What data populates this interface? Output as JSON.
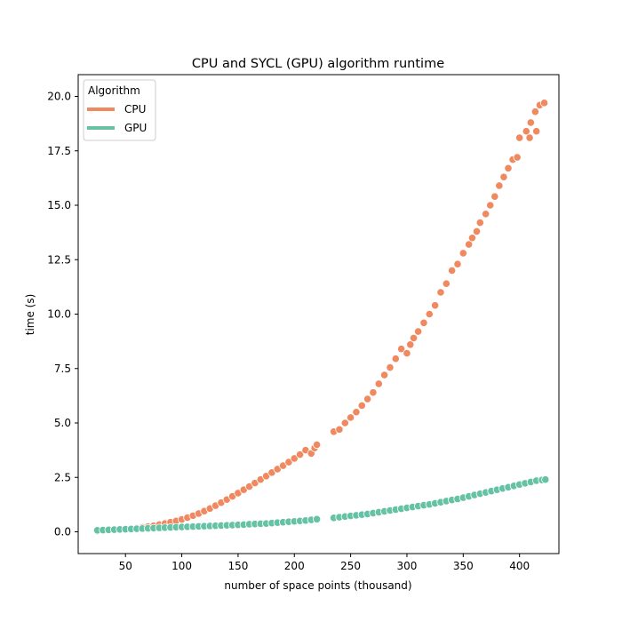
{
  "chart_data": {
    "type": "scatter",
    "title": "CPU and SYCL (GPU) algorithm runtime",
    "xlabel": "number of space points (thousand)",
    "ylabel": "time (s)",
    "xlim": [
      8,
      435
    ],
    "ylim": [
      -1.0,
      21.0
    ],
    "xticks": [
      50,
      100,
      150,
      200,
      250,
      300,
      350,
      400
    ],
    "yticks": [
      0.0,
      2.5,
      5.0,
      7.5,
      10.0,
      12.5,
      15.0,
      17.5,
      20.0
    ],
    "xtick_labels": [
      "50",
      "100",
      "150",
      "200",
      "250",
      "300",
      "350",
      "400"
    ],
    "ytick_labels": [
      "0.0",
      "2.5",
      "5.0",
      "7.5",
      "10.0",
      "12.5",
      "15.0",
      "17.5",
      "20.0"
    ],
    "grid": false,
    "legend": {
      "title": "Algorithm",
      "placement": "upper-left",
      "entries": [
        "CPU",
        "GPU"
      ]
    },
    "series": [
      {
        "name": "CPU",
        "color": "#f0895f",
        "points": [
          [
            25,
            0.04
          ],
          [
            30,
            0.05
          ],
          [
            35,
            0.07
          ],
          [
            40,
            0.08
          ],
          [
            45,
            0.1
          ],
          [
            50,
            0.12
          ],
          [
            55,
            0.14
          ],
          [
            60,
            0.17
          ],
          [
            65,
            0.2
          ],
          [
            70,
            0.24
          ],
          [
            75,
            0.28
          ],
          [
            80,
            0.33
          ],
          [
            85,
            0.38
          ],
          [
            90,
            0.44
          ],
          [
            95,
            0.5
          ],
          [
            100,
            0.57
          ],
          [
            105,
            0.65
          ],
          [
            110,
            0.74
          ],
          [
            115,
            0.84
          ],
          [
            120,
            0.95
          ],
          [
            125,
            1.07
          ],
          [
            130,
            1.2
          ],
          [
            135,
            1.34
          ],
          [
            140,
            1.48
          ],
          [
            145,
            1.63
          ],
          [
            150,
            1.78
          ],
          [
            155,
            1.93
          ],
          [
            160,
            2.08
          ],
          [
            165,
            2.24
          ],
          [
            170,
            2.4
          ],
          [
            175,
            2.56
          ],
          [
            180,
            2.72
          ],
          [
            185,
            2.88
          ],
          [
            190,
            3.04
          ],
          [
            195,
            3.2
          ],
          [
            200,
            3.37
          ],
          [
            205,
            3.55
          ],
          [
            210,
            3.75
          ],
          [
            215,
            3.6
          ],
          [
            218,
            3.85
          ],
          [
            220,
            4.0
          ],
          [
            235,
            4.6
          ],
          [
            240,
            4.7
          ],
          [
            245,
            5.0
          ],
          [
            250,
            5.25
          ],
          [
            255,
            5.5
          ],
          [
            260,
            5.8
          ],
          [
            265,
            6.1
          ],
          [
            270,
            6.4
          ],
          [
            275,
            6.8
          ],
          [
            280,
            7.2
          ],
          [
            285,
            7.55
          ],
          [
            290,
            7.95
          ],
          [
            295,
            8.4
          ],
          [
            300,
            8.2
          ],
          [
            303,
            8.6
          ],
          [
            306,
            8.9
          ],
          [
            310,
            9.2
          ],
          [
            315,
            9.6
          ],
          [
            320,
            10.0
          ],
          [
            325,
            10.4
          ],
          [
            330,
            11.0
          ],
          [
            335,
            11.4
          ],
          [
            340,
            12.0
          ],
          [
            345,
            12.3
          ],
          [
            350,
            12.8
          ],
          [
            355,
            13.2
          ],
          [
            358,
            13.5
          ],
          [
            362,
            13.8
          ],
          [
            365,
            14.2
          ],
          [
            370,
            14.6
          ],
          [
            374,
            15.0
          ],
          [
            378,
            15.4
          ],
          [
            382,
            15.9
          ],
          [
            386,
            16.3
          ],
          [
            390,
            16.7
          ],
          [
            394,
            17.1
          ],
          [
            398,
            17.2
          ],
          [
            400,
            18.1
          ],
          [
            406,
            18.4
          ],
          [
            410,
            18.8
          ],
          [
            414,
            19.3
          ],
          [
            418,
            19.6
          ],
          [
            422,
            19.7
          ],
          [
            409,
            18.1
          ],
          [
            415,
            18.4
          ]
        ]
      },
      {
        "name": "GPU",
        "color": "#66c2a5",
        "points": [
          [
            25,
            0.07
          ],
          [
            30,
            0.08
          ],
          [
            35,
            0.09
          ],
          [
            40,
            0.1
          ],
          [
            45,
            0.11
          ],
          [
            50,
            0.12
          ],
          [
            55,
            0.13
          ],
          [
            60,
            0.14
          ],
          [
            65,
            0.15
          ],
          [
            70,
            0.16
          ],
          [
            75,
            0.17
          ],
          [
            80,
            0.18
          ],
          [
            85,
            0.19
          ],
          [
            90,
            0.2
          ],
          [
            95,
            0.21
          ],
          [
            100,
            0.22
          ],
          [
            105,
            0.23
          ],
          [
            110,
            0.24
          ],
          [
            115,
            0.25
          ],
          [
            120,
            0.26
          ],
          [
            125,
            0.27
          ],
          [
            130,
            0.28
          ],
          [
            135,
            0.29
          ],
          [
            140,
            0.3
          ],
          [
            145,
            0.31
          ],
          [
            150,
            0.32
          ],
          [
            155,
            0.33
          ],
          [
            160,
            0.35
          ],
          [
            165,
            0.36
          ],
          [
            170,
            0.37
          ],
          [
            175,
            0.38
          ],
          [
            180,
            0.4
          ],
          [
            185,
            0.42
          ],
          [
            190,
            0.44
          ],
          [
            195,
            0.46
          ],
          [
            200,
            0.48
          ],
          [
            205,
            0.5
          ],
          [
            210,
            0.52
          ],
          [
            215,
            0.55
          ],
          [
            220,
            0.58
          ],
          [
            235,
            0.64
          ],
          [
            240,
            0.67
          ],
          [
            245,
            0.7
          ],
          [
            250,
            0.73
          ],
          [
            255,
            0.76
          ],
          [
            260,
            0.79
          ],
          [
            265,
            0.82
          ],
          [
            270,
            0.86
          ],
          [
            275,
            0.9
          ],
          [
            280,
            0.94
          ],
          [
            285,
            0.98
          ],
          [
            290,
            1.02
          ],
          [
            295,
            1.06
          ],
          [
            300,
            1.1
          ],
          [
            305,
            1.14
          ],
          [
            310,
            1.18
          ],
          [
            315,
            1.22
          ],
          [
            320,
            1.26
          ],
          [
            325,
            1.31
          ],
          [
            330,
            1.36
          ],
          [
            335,
            1.41
          ],
          [
            340,
            1.46
          ],
          [
            345,
            1.51
          ],
          [
            350,
            1.57
          ],
          [
            355,
            1.63
          ],
          [
            360,
            1.69
          ],
          [
            365,
            1.75
          ],
          [
            370,
            1.81
          ],
          [
            375,
            1.87
          ],
          [
            380,
            1.93
          ],
          [
            385,
            1.99
          ],
          [
            390,
            2.05
          ],
          [
            395,
            2.11
          ],
          [
            400,
            2.17
          ],
          [
            405,
            2.23
          ],
          [
            410,
            2.29
          ],
          [
            415,
            2.35
          ],
          [
            420,
            2.38
          ],
          [
            423,
            2.4
          ]
        ]
      }
    ]
  }
}
